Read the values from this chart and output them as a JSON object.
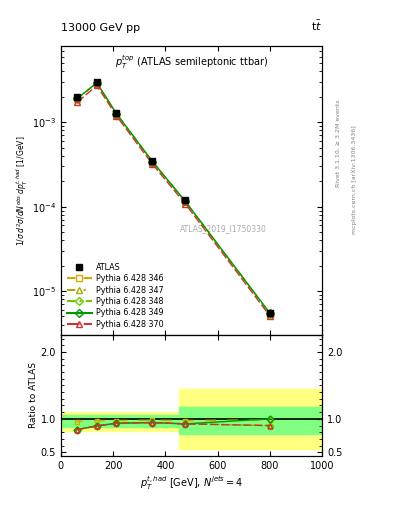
{
  "title_left": "13000 GeV pp",
  "title_right": "t$\\bar{t}$",
  "plot_title": "$p_T^{top}$ (ATLAS semileptonic ttbar)",
  "watermark": "ATLAS_2019_I1750330",
  "xlabel": "$p_T^{t,had}$ [GeV], $N^{jets} = 4$",
  "ylabel": "$1 / \\sigma \\, d^2\\sigma / dN^{obs} \\, dp_T^{t,had}$ [1/GeV]",
  "ylabel_ratio": "Ratio to ATLAS",
  "right_label1": "Rivet 3.1.10, ≥ 3.2M events",
  "right_label2": "mcplots.cern.ch [arXiv:1306.3436]",
  "x_pts": [
    62.5,
    137.5,
    212.5,
    350.0,
    475.0,
    800.0
  ],
  "atlas_y": [
    0.002,
    0.003,
    0.0013,
    0.00035,
    0.00012,
    5.5e-06
  ],
  "py346_y": [
    0.00192,
    0.00293,
    0.00127,
    0.000343,
    0.000117,
    5.42e-06
  ],
  "py347_y": [
    0.0019,
    0.0029,
    0.00125,
    0.00034,
    0.000114,
    5.35e-06
  ],
  "py348_y": [
    0.00191,
    0.00292,
    0.00126,
    0.000342,
    0.000116,
    5.4e-06
  ],
  "py349_y": [
    0.00192,
    0.00293,
    0.00127,
    0.000343,
    0.000117,
    5.45e-06
  ],
  "py370_y": [
    0.00173,
    0.00273,
    0.00119,
    0.00032,
    0.000109,
    5.05e-06
  ],
  "ratio_x": [
    62.5,
    137.5,
    212.5,
    350.0,
    475.0,
    800.0
  ],
  "ratio_346": [
    0.96,
    0.975,
    0.975,
    0.98,
    0.975,
    0.985
  ],
  "ratio_347": [
    0.84,
    0.895,
    0.935,
    0.945,
    0.925,
    0.9
  ],
  "ratio_348": [
    0.84,
    0.895,
    0.935,
    0.945,
    0.925,
    0.9
  ],
  "ratio_349": [
    0.84,
    0.895,
    0.935,
    0.945,
    0.925,
    1.0
  ],
  "ratio_370": [
    0.84,
    0.895,
    0.935,
    0.945,
    0.925,
    0.9
  ],
  "color_atlas": "#000000",
  "color_346": "#d4aa00",
  "color_347": "#aaaa00",
  "color_348": "#66cc00",
  "color_349": "#009900",
  "color_370": "#cc3333",
  "color_yellow": "#ffff80",
  "color_green": "#80ff80",
  "ylim_main": [
    3e-06,
    0.008
  ],
  "ylim_ratio": [
    0.45,
    2.25
  ],
  "xlim": [
    0,
    1000
  ]
}
